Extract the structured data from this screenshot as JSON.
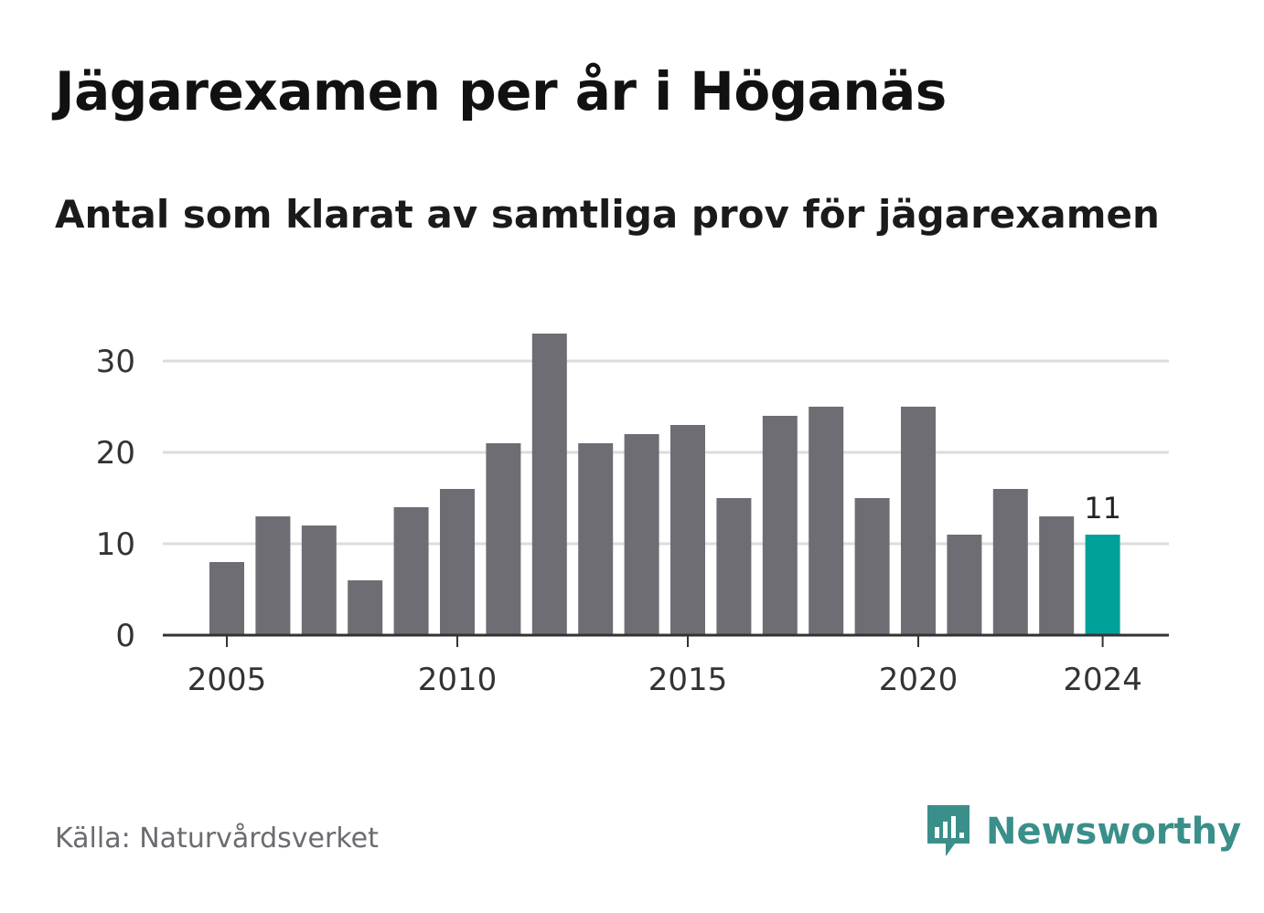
{
  "title": "Jägarexamen per år i Höganäs",
  "subtitle": "Antal som klarat av samtliga prov för jägarexamen",
  "source": "Källa: Naturvårdsverket",
  "brand": {
    "name": "Newsworthy",
    "icon": "newsworthy-logo-icon"
  },
  "colors": {
    "bar": "#6e6d73",
    "highlight": "#00a19a",
    "grid": "#dcdcdc",
    "axis": "#333333",
    "tick_text": "#333333",
    "brand": "#3a8f8a"
  },
  "chart_data": {
    "type": "bar",
    "categories": [
      "2005",
      "2006",
      "2007",
      "2008",
      "2009",
      "2010",
      "2011",
      "2012",
      "2013",
      "2014",
      "2015",
      "2016",
      "2017",
      "2018",
      "2019",
      "2020",
      "2021",
      "2022",
      "2023",
      "2024"
    ],
    "values": [
      8,
      13,
      12,
      6,
      14,
      16,
      21,
      33,
      21,
      22,
      23,
      15,
      24,
      25,
      15,
      25,
      11,
      16,
      13,
      11
    ],
    "highlight": "2024",
    "highlight_label": "11",
    "x_ticks": [
      "2005",
      "2010",
      "2015",
      "2020",
      "2024"
    ],
    "y_ticks": [
      0,
      10,
      20,
      30
    ],
    "ylim": [
      0,
      33
    ],
    "grid": true,
    "xlabel": "",
    "ylabel": ""
  }
}
